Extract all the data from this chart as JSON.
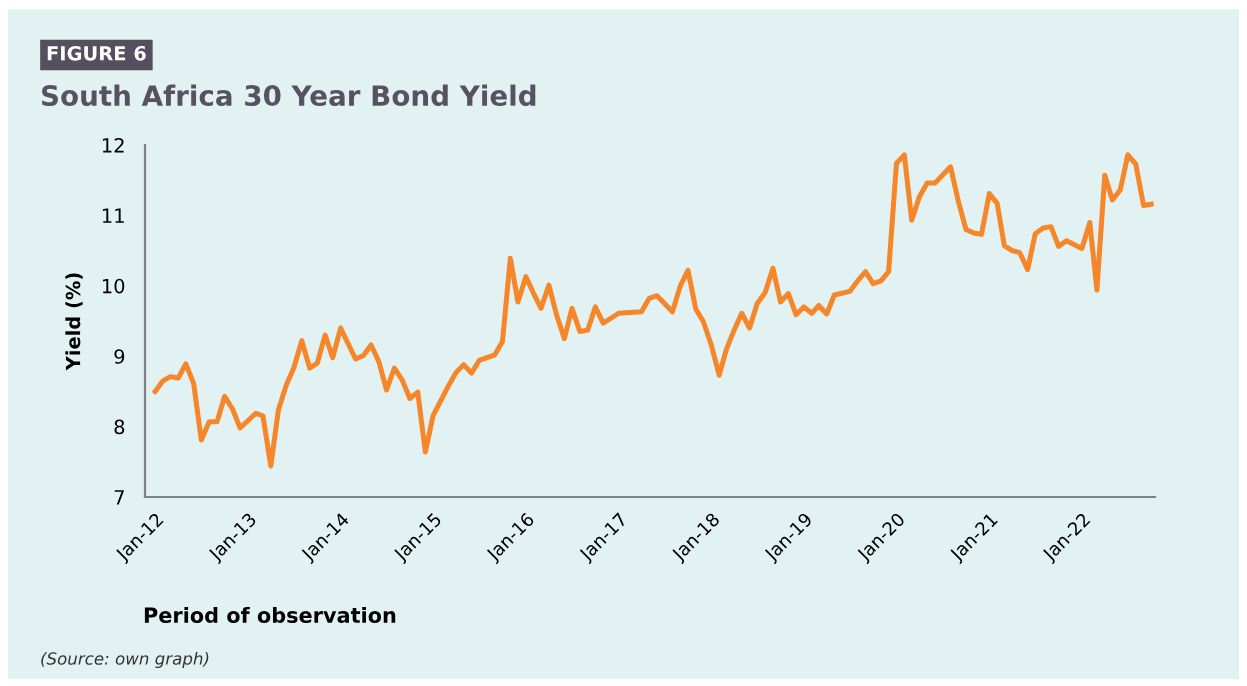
{
  "chart_data": {
    "type": "line",
    "title": "South Africa 30 Year Bond Yield",
    "xlabel": "Period of observation",
    "ylabel": "Yield (%)",
    "annotations": [
      "FIGURE 6",
      "(Source: own graph)"
    ],
    "series": [
      {
        "color": "#f5862a",
        "x": [
          "2012-01",
          "2012-02",
          "2012-03",
          "2012-04",
          "2012-05",
          "2012-06",
          "2012-07",
          "2012-08",
          "2012-09",
          "2012-10",
          "2012-11",
          "2012-12",
          "2013-02",
          "2013-03",
          "2013-04",
          "2013-05",
          "2013-06",
          "2013-07",
          "2013-08",
          "2013-09",
          "2013-10",
          "2013-11",
          "2013-12",
          "2014-01",
          "2014-03",
          "2014-04",
          "2014-05",
          "2014-06",
          "2014-07",
          "2014-08",
          "2014-09",
          "2014-10",
          "2014-11",
          "2014-12",
          "2015-01",
          "2015-03",
          "2015-04",
          "2015-05",
          "2015-06",
          "2015-07",
          "2015-09",
          "2015-10",
          "2015-11",
          "2015-12",
          "2016-01",
          "2016-02",
          "2016-03",
          "2016-04",
          "2016-05",
          "2016-06",
          "2016-07",
          "2016-08",
          "2016-09",
          "2016-10",
          "2016-11",
          "2017-01",
          "2017-04",
          "2017-05",
          "2017-06",
          "2017-08",
          "2017-09",
          "2017-10",
          "2017-11",
          "2017-12",
          "2018-01",
          "2018-02",
          "2018-03",
          "2018-04",
          "2018-05",
          "2018-06",
          "2018-07",
          "2018-08",
          "2018-09",
          "2018-10",
          "2018-11",
          "2018-12",
          "2019-01",
          "2019-02",
          "2019-03",
          "2019-04",
          "2019-05",
          "2019-07",
          "2019-08",
          "2019-09",
          "2019-10",
          "2019-11",
          "2019-12",
          "2020-01",
          "2020-02",
          "2020-03",
          "2020-04",
          "2020-05",
          "2020-06",
          "2020-08",
          "2020-09",
          "2020-10",
          "2020-11",
          "2020-12",
          "2021-01",
          "2021-02",
          "2021-03",
          "2021-04",
          "2021-05",
          "2021-06",
          "2021-07",
          "2021-08",
          "2021-09",
          "2021-10",
          "2021-11",
          "2022-01",
          "2022-02",
          "2022-03",
          "2022-04",
          "2022-05",
          "2022-06",
          "2022-07",
          "2022-08",
          "2022-09",
          "2022-10"
        ],
        "values": [
          8.5,
          8.65,
          8.71,
          8.69,
          8.89,
          8.61,
          7.81,
          8.07,
          8.07,
          8.43,
          8.25,
          7.98,
          8.19,
          8.15,
          7.44,
          8.24,
          8.59,
          8.84,
          9.22,
          8.83,
          8.9,
          9.3,
          8.98,
          9.4,
          8.96,
          9.01,
          9.16,
          8.92,
          8.52,
          8.83,
          8.66,
          8.4,
          8.49,
          7.64,
          8.16,
          8.57,
          8.77,
          8.88,
          8.76,
          8.94,
          9.02,
          9.21,
          10.39,
          9.77,
          10.13,
          9.89,
          9.68,
          10.01,
          9.59,
          9.25,
          9.68,
          9.35,
          9.37,
          9.7,
          9.47,
          9.61,
          9.63,
          9.82,
          9.86,
          9.63,
          10.0,
          10.22,
          9.67,
          9.49,
          9.16,
          8.73,
          9.09,
          9.37,
          9.61,
          9.4,
          9.75,
          9.9,
          10.25,
          9.77,
          9.89,
          9.59,
          9.7,
          9.61,
          9.72,
          9.6,
          9.87,
          9.92,
          10.07,
          10.2,
          10.03,
          10.07,
          10.2,
          11.74,
          11.86,
          10.93,
          11.27,
          11.46,
          11.46,
          11.69,
          11.2,
          10.8,
          10.75,
          10.73,
          11.31,
          11.17,
          10.57,
          10.5,
          10.47,
          10.23,
          10.74,
          10.82,
          10.84,
          10.56,
          10.64,
          10.53,
          10.9,
          9.94,
          11.57,
          11.22,
          11.36,
          11.86,
          11.73,
          11.14,
          11.16
        ]
      }
    ],
    "xlim": [
      "2011-11-22",
      "2022-10-16"
    ],
    "xticks": [
      {
        "value": "2012-01",
        "label": "Jan-12"
      },
      {
        "value": "2013-01",
        "label": "Jan-13"
      },
      {
        "value": "2014-01",
        "label": "Jan-14"
      },
      {
        "value": "2015-01",
        "label": "Jan-15"
      },
      {
        "value": "2016-01",
        "label": "Jan-16"
      },
      {
        "value": "2017-01",
        "label": "Jan-17"
      },
      {
        "value": "2018-01",
        "label": "Jan-18"
      },
      {
        "value": "2019-01",
        "label": "Jan-19"
      },
      {
        "value": "2020-01",
        "label": "Jan-20"
      },
      {
        "value": "2021-01",
        "label": "Jan-21"
      },
      {
        "value": "2022-01",
        "label": "Jan-22"
      }
    ],
    "ylim": [
      7,
      12
    ],
    "yticks": [
      7,
      8,
      9,
      10,
      11,
      12
    ],
    "grid": false,
    "marker": "none",
    "line_style": "solid"
  }
}
